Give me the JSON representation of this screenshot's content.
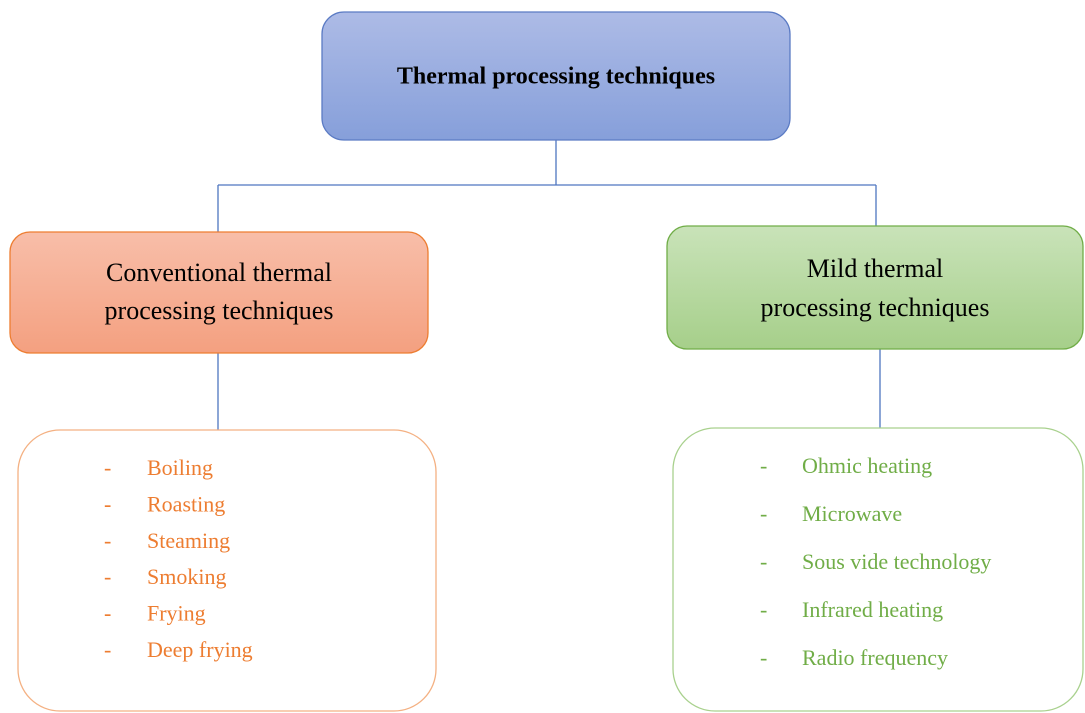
{
  "root": {
    "label": "Thermal processing techniques"
  },
  "branches": [
    {
      "label_lines": [
        "Conventional thermal",
        "processing techniques"
      ],
      "bullet": "-",
      "items": [
        "Boiling",
        "Roasting",
        "Steaming",
        "Smoking",
        "Frying",
        "Deep frying"
      ]
    },
    {
      "label_lines": [
        "Mild thermal",
        "processing techniques"
      ],
      "bullet": "-",
      "items": [
        "Ohmic heating",
        "Microwave",
        "Sous vide technology",
        "Infrared heating",
        "Radio frequency"
      ]
    }
  ]
}
